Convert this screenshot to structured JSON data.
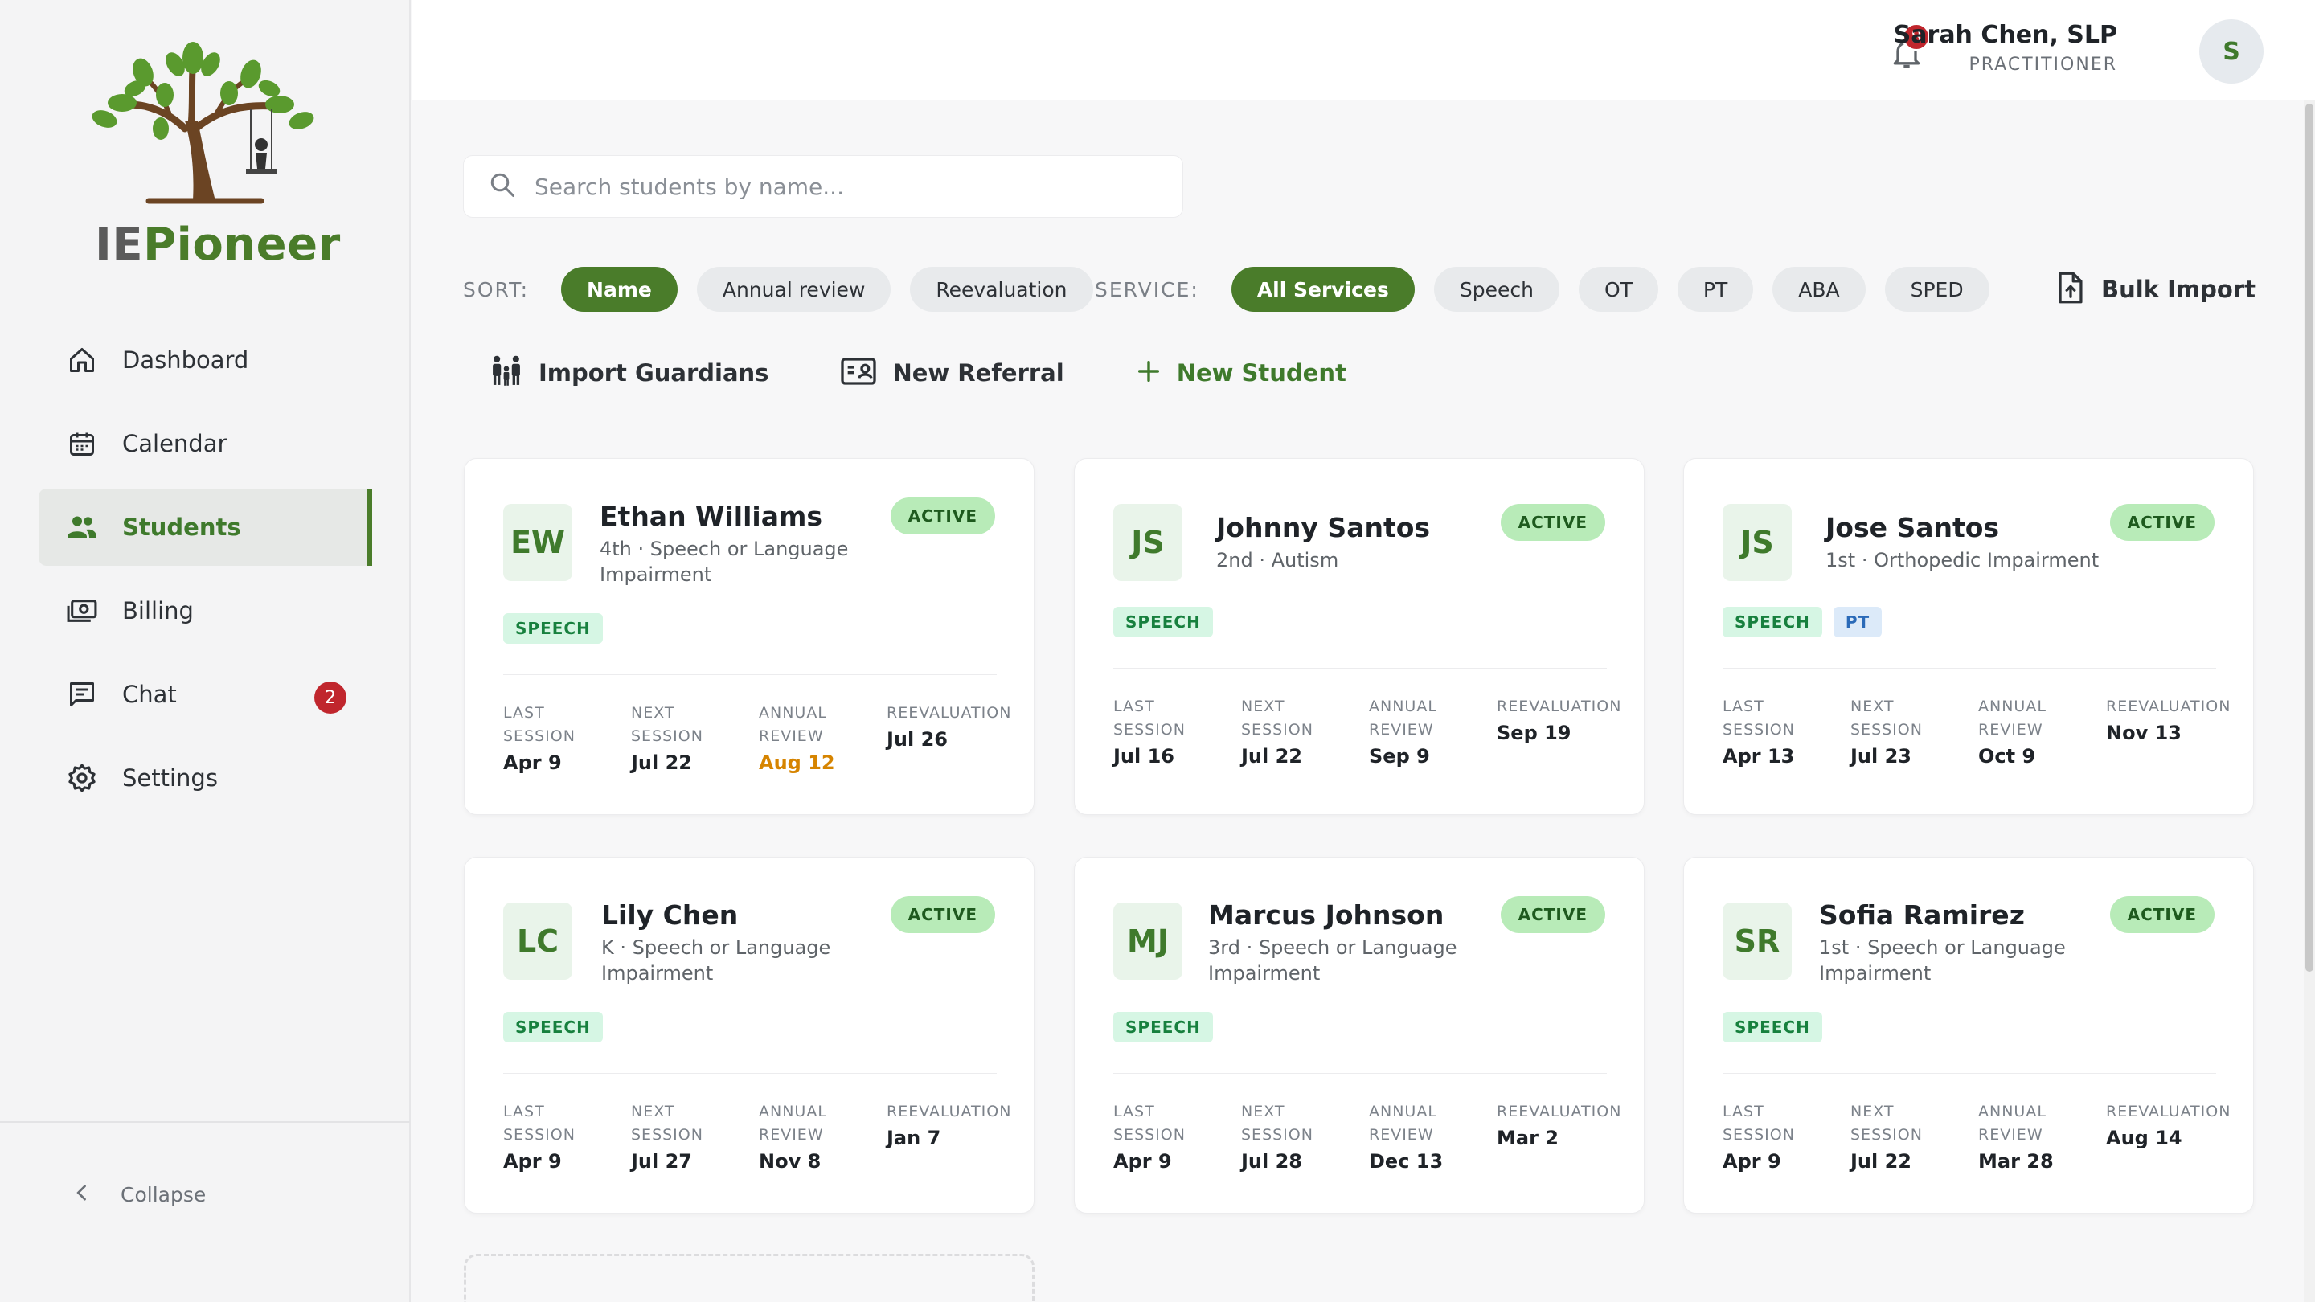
{
  "brand": {
    "prefix": "IE",
    "suffix": "Pioneer"
  },
  "nav": [
    {
      "label": "Dashboard",
      "icon": "home-icon"
    },
    {
      "label": "Calendar",
      "icon": "calendar-icon"
    },
    {
      "label": "Students",
      "icon": "people-icon",
      "active": true
    },
    {
      "label": "Billing",
      "icon": "money-icon"
    },
    {
      "label": "Chat",
      "icon": "chat-icon",
      "badge": "2"
    },
    {
      "label": "Settings",
      "icon": "gear-icon"
    }
  ],
  "collapse_label": "Collapse",
  "header": {
    "notifications": "8",
    "user_name": "Sarah Chen, SLP",
    "user_role": "PRACTITIONER",
    "avatar_initial": "S"
  },
  "search": {
    "placeholder": "Search students by name..."
  },
  "sort": {
    "label": "SORT:",
    "options": [
      "Name",
      "Annual review",
      "Reevaluation"
    ],
    "selected": "Name"
  },
  "service": {
    "label": "SERVICE:",
    "options": [
      "All Services",
      "Speech",
      "OT",
      "PT",
      "ABA",
      "SPED"
    ],
    "selected": "All Services"
  },
  "bulk_import": "Bulk Import",
  "actions": {
    "import_guardians": "Import Guardians",
    "new_referral": "New Referral",
    "new_student": "New Student"
  },
  "metric_labels": {
    "last": [
      "LAST",
      "SESSION"
    ],
    "next": [
      "NEXT",
      "SESSION"
    ],
    "annual": [
      "ANNUAL",
      "REVIEW"
    ],
    "reeval": [
      "REEVALUATION"
    ]
  },
  "students": [
    {
      "initials": "EW",
      "name": "Ethan Williams",
      "sub": "4th · Speech or Language Impairment",
      "status": "ACTIVE",
      "tags": [
        "SPEECH"
      ],
      "last": "Apr 9",
      "next": "Jul 22",
      "annual": "Aug 12",
      "annual_warn": true,
      "reeval": "Jul 26"
    },
    {
      "initials": "JS",
      "name": "Johnny Santos",
      "sub": "2nd · Autism",
      "status": "ACTIVE",
      "tags": [
        "SPEECH"
      ],
      "last": "Jul 16",
      "next": "Jul 22",
      "annual": "Sep 9",
      "reeval": "Sep 19"
    },
    {
      "initials": "JS",
      "name": "Jose Santos",
      "sub": "1st · Orthopedic Impairment",
      "status": "ACTIVE",
      "tags": [
        "SPEECH",
        "PT"
      ],
      "last": "Apr 13",
      "next": "Jul 23",
      "annual": "Oct 9",
      "reeval": "Nov 13"
    },
    {
      "initials": "LC",
      "name": "Lily Chen",
      "sub": "K · Speech or Language Impairment",
      "status": "ACTIVE",
      "tags": [
        "SPEECH"
      ],
      "last": "Apr 9",
      "next": "Jul 27",
      "annual": "Nov 8",
      "reeval": "Jan 7"
    },
    {
      "initials": "MJ",
      "name": "Marcus Johnson",
      "sub": "3rd · Speech or Language Impairment",
      "status": "ACTIVE",
      "tags": [
        "SPEECH"
      ],
      "last": "Apr 9",
      "next": "Jul 28",
      "annual": "Dec 13",
      "reeval": "Mar 2"
    },
    {
      "initials": "SR",
      "name": "Sofia Ramirez",
      "sub": "1st · Speech or Language Impairment",
      "status": "ACTIVE",
      "tags": [
        "SPEECH"
      ],
      "last": "Apr 9",
      "next": "Jul 22",
      "annual": "Mar 28",
      "reeval": "Aug 14"
    }
  ],
  "colors": {
    "brand_green": "#4a7c2a",
    "badge_red": "#c0262d",
    "warn_orange": "#d68400",
    "status_green": "#b8ebb8"
  }
}
